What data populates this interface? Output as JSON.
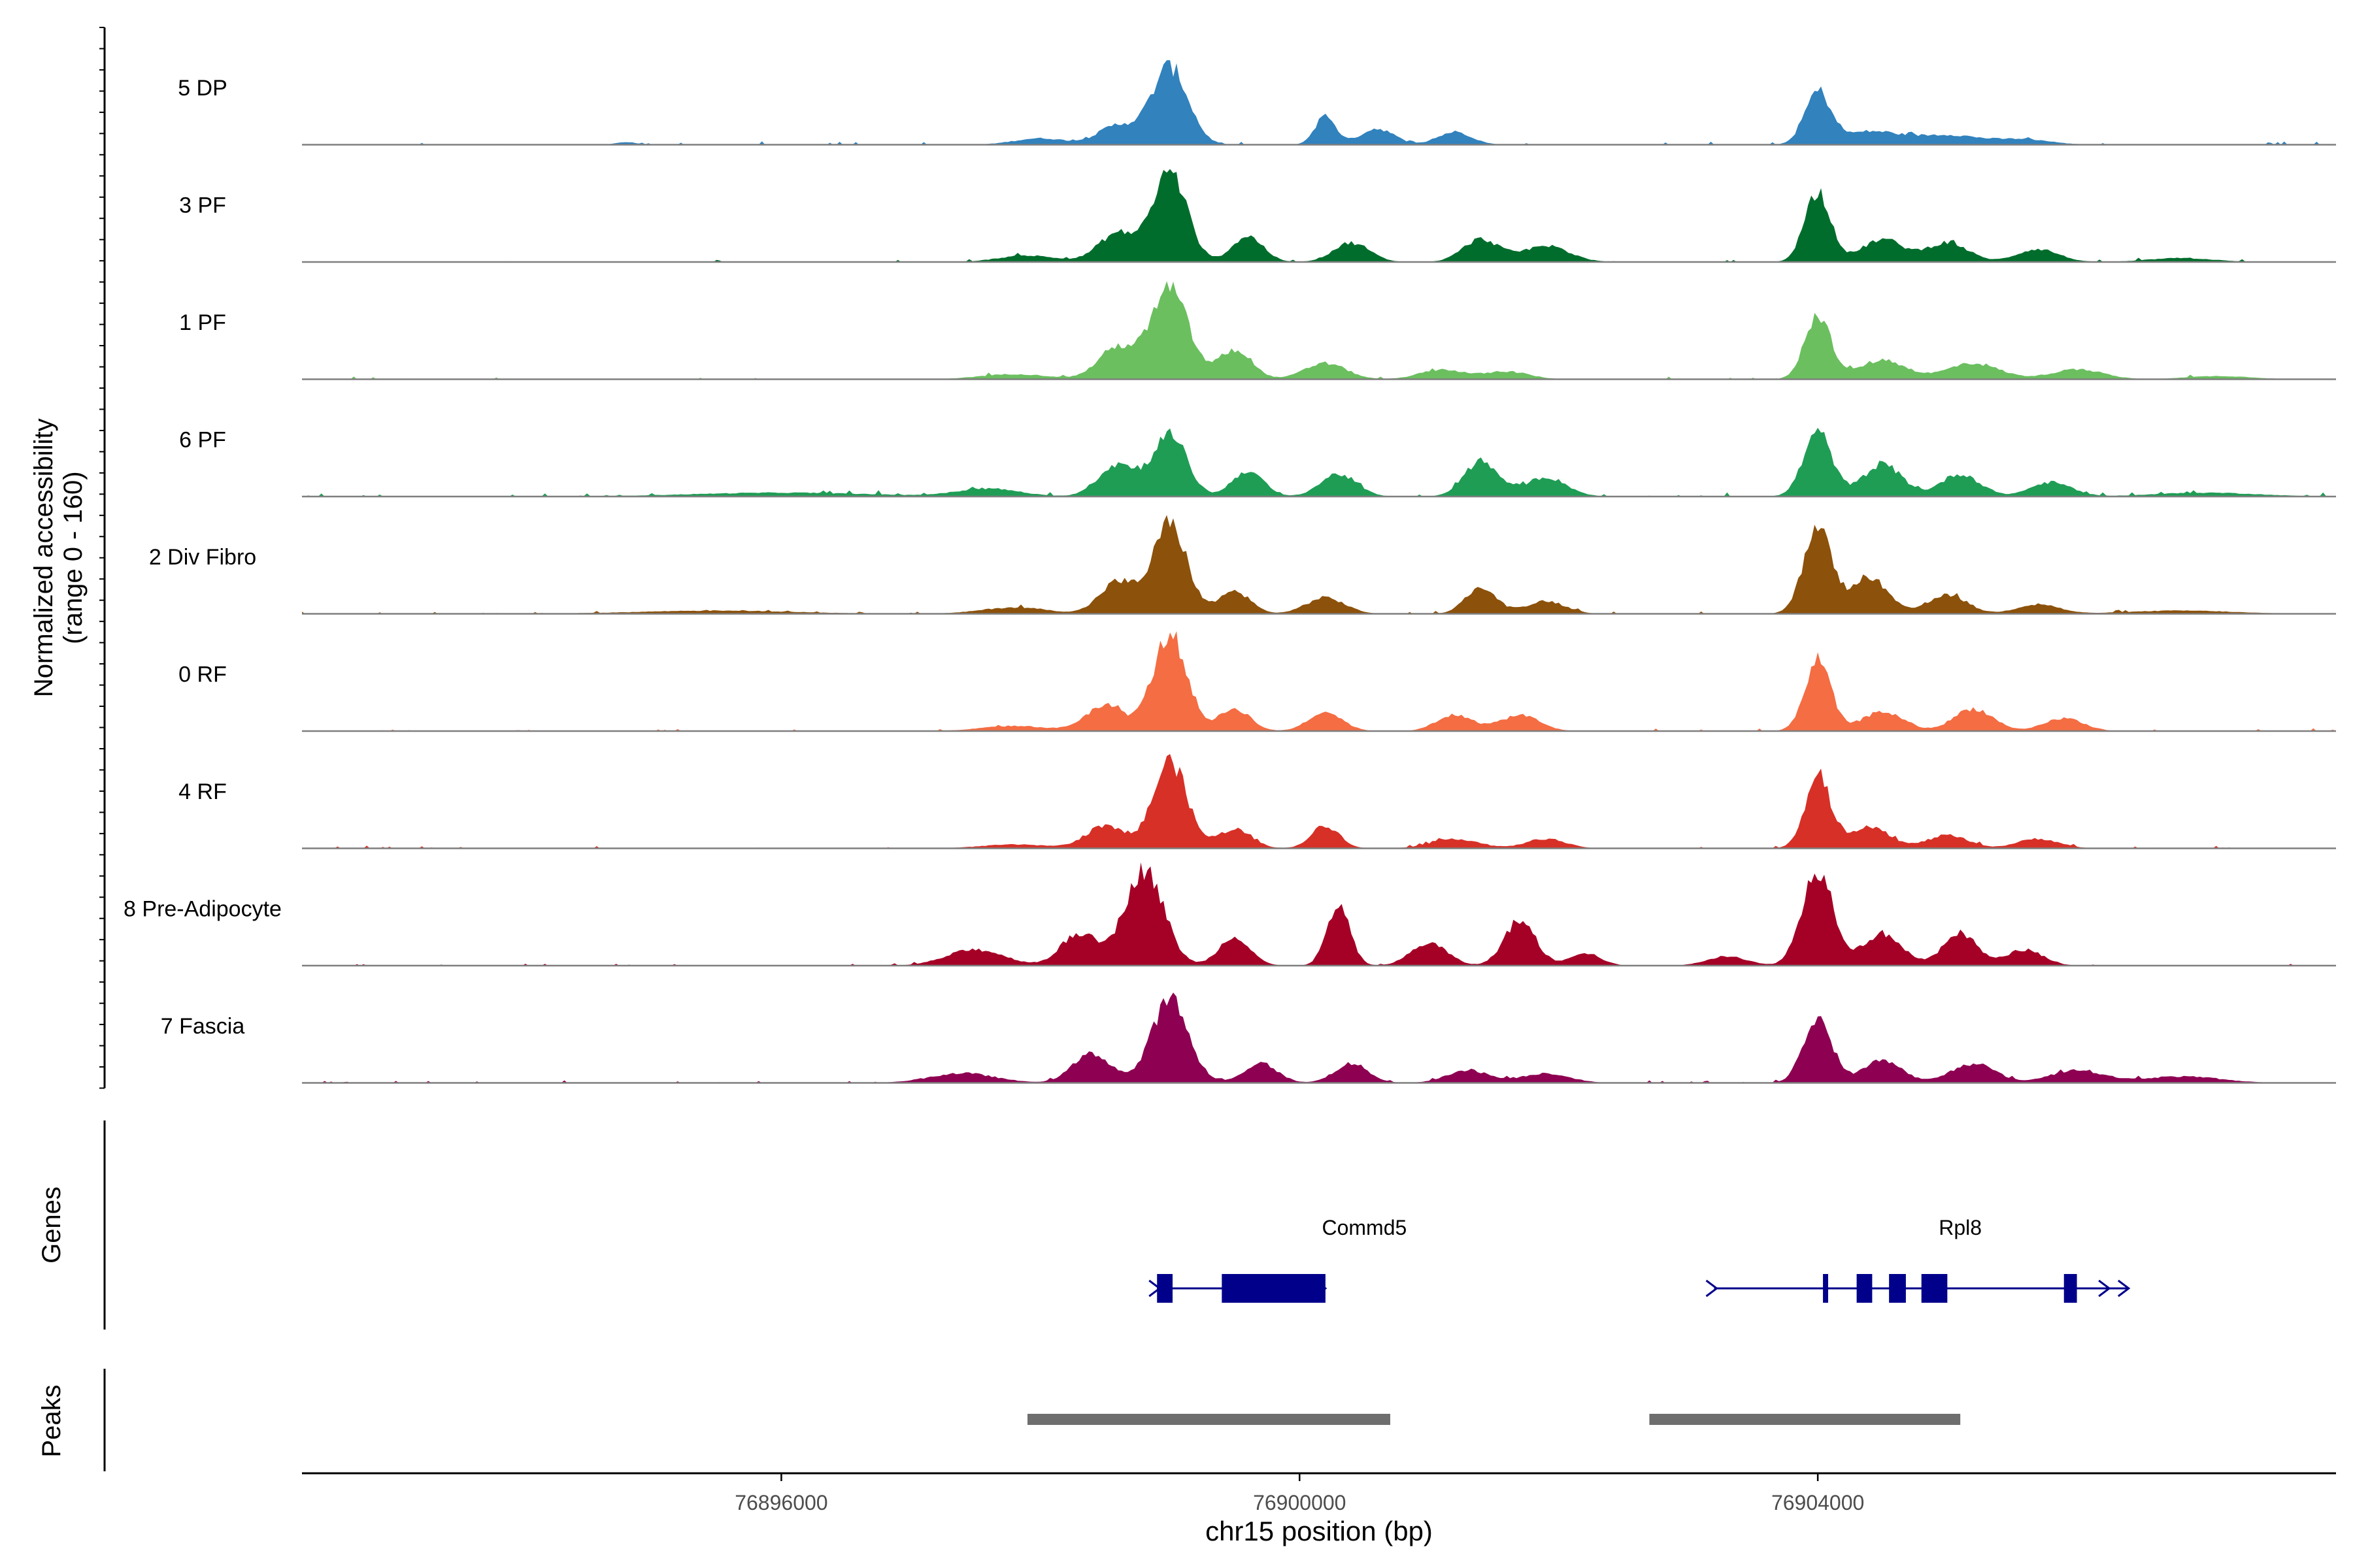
{
  "chart_data": {
    "type": "area",
    "title": "",
    "ylabel": [
      "Normalized accessibility",
      "(range 0 - 160)"
    ],
    "yrange": [
      0,
      160
    ],
    "xlabel": "chr15 position (bp)",
    "xlim": [
      76892300,
      76908000
    ],
    "xticks": [
      76896000,
      76900000,
      76904000
    ],
    "xtick_labels": [
      "76896000",
      "76900000",
      "76904000"
    ],
    "tracks": [
      {
        "name": "5 DP",
        "color": "#3182bd",
        "baseline": 5,
        "peaks": [
          [
            76899000,
            120,
            140
          ],
          [
            76898600,
            30,
            150
          ],
          [
            76900200,
            45,
            80
          ],
          [
            76900600,
            25,
            130
          ],
          [
            76901200,
            20,
            130
          ],
          [
            76898000,
            10,
            200
          ],
          [
            76904000,
            80,
            100
          ],
          [
            76904400,
            20,
            220
          ],
          [
            76905000,
            15,
            260
          ],
          [
            76905600,
            8,
            200
          ],
          [
            76894800,
            4,
            80
          ]
        ]
      },
      {
        "name": "3 PF",
        "color": "#006d2c",
        "baseline": 4,
        "peaks": [
          [
            76899000,
            140,
            130
          ],
          [
            76898600,
            45,
            150
          ],
          [
            76899600,
            40,
            120
          ],
          [
            76900400,
            30,
            140
          ],
          [
            76901400,
            35,
            140
          ],
          [
            76901900,
            25,
            180
          ],
          [
            76897900,
            10,
            220
          ],
          [
            76904000,
            110,
            100
          ],
          [
            76904500,
            35,
            160
          ],
          [
            76905000,
            30,
            160
          ],
          [
            76905700,
            20,
            160
          ],
          [
            76906800,
            6,
            250
          ]
        ]
      },
      {
        "name": "1 PF",
        "color": "#6bbf5f",
        "baseline": 4,
        "peaks": [
          [
            76899000,
            140,
            140
          ],
          [
            76898600,
            50,
            150
          ],
          [
            76899500,
            45,
            130
          ],
          [
            76900200,
            25,
            160
          ],
          [
            76901100,
            15,
            170
          ],
          [
            76901600,
            12,
            170
          ],
          [
            76897800,
            8,
            260
          ],
          [
            76904000,
            100,
            100
          ],
          [
            76904500,
            30,
            180
          ],
          [
            76905200,
            25,
            200
          ],
          [
            76906000,
            15,
            200
          ],
          [
            76907100,
            5,
            250
          ]
        ]
      },
      {
        "name": "6 PF",
        "color": "#1f9d55",
        "baseline": 6,
        "peaks": [
          [
            76899000,
            95,
            130
          ],
          [
            76898600,
            50,
            150
          ],
          [
            76899600,
            40,
            120
          ],
          [
            76900300,
            35,
            140
          ],
          [
            76901400,
            55,
            130
          ],
          [
            76901900,
            30,
            160
          ],
          [
            76897600,
            12,
            240
          ],
          [
            76904000,
            100,
            110
          ],
          [
            76904500,
            50,
            150
          ],
          [
            76905100,
            35,
            150
          ],
          [
            76905800,
            22,
            160
          ],
          [
            76896000,
            6,
            700
          ],
          [
            76907000,
            6,
            400
          ]
        ]
      },
      {
        "name": "2 Div Fibro",
        "color": "#8c510a",
        "baseline": 4,
        "peaks": [
          [
            76899000,
            140,
            130
          ],
          [
            76898600,
            50,
            140
          ],
          [
            76899500,
            35,
            120
          ],
          [
            76900200,
            25,
            150
          ],
          [
            76901400,
            40,
            120
          ],
          [
            76901900,
            20,
            150
          ],
          [
            76897800,
            10,
            250
          ],
          [
            76904000,
            130,
            110
          ],
          [
            76904400,
            55,
            140
          ],
          [
            76905000,
            30,
            150
          ],
          [
            76905700,
            15,
            160
          ],
          [
            76895500,
            5,
            600
          ],
          [
            76906800,
            5,
            400
          ]
        ]
      },
      {
        "name": "0 RF",
        "color": "#f46d43",
        "baseline": 4,
        "peaks": [
          [
            76899000,
            150,
            130
          ],
          [
            76898500,
            40,
            150
          ],
          [
            76899500,
            35,
            120
          ],
          [
            76900200,
            30,
            130
          ],
          [
            76901200,
            25,
            140
          ],
          [
            76901700,
            25,
            150
          ],
          [
            76897800,
            8,
            250
          ],
          [
            76904000,
            110,
            100
          ],
          [
            76904500,
            30,
            160
          ],
          [
            76905200,
            35,
            150
          ],
          [
            76905900,
            20,
            150
          ]
        ]
      },
      {
        "name": "4 RF",
        "color": "#d73027",
        "baseline": 4,
        "peaks": [
          [
            76899000,
            135,
            130
          ],
          [
            76898500,
            35,
            150
          ],
          [
            76899500,
            30,
            130
          ],
          [
            76900200,
            35,
            110
          ],
          [
            76901200,
            15,
            180
          ],
          [
            76901900,
            15,
            150
          ],
          [
            76897800,
            6,
            250
          ],
          [
            76904000,
            110,
            100
          ],
          [
            76904400,
            35,
            150
          ],
          [
            76905000,
            20,
            160
          ],
          [
            76905700,
            15,
            160
          ]
        ]
      },
      {
        "name": "8 Pre-Adipocyte",
        "color": "#a50026",
        "baseline": 3,
        "peaks": [
          [
            76898800,
            150,
            150
          ],
          [
            76898300,
            50,
            140
          ],
          [
            76899500,
            45,
            120
          ],
          [
            76900300,
            90,
            90
          ],
          [
            76901000,
            35,
            140
          ],
          [
            76901700,
            70,
            120
          ],
          [
            76902200,
            20,
            120
          ],
          [
            76897500,
            25,
            220
          ],
          [
            76904000,
            150,
            120
          ],
          [
            76904500,
            50,
            150
          ],
          [
            76905100,
            50,
            130
          ],
          [
            76905600,
            25,
            140
          ],
          [
            76903300,
            15,
            150
          ]
        ]
      },
      {
        "name": "7 Fascia",
        "color": "#8e0152",
        "baseline": 4,
        "peaks": [
          [
            76899000,
            130,
            140
          ],
          [
            76898400,
            45,
            150
          ],
          [
            76899700,
            30,
            130
          ],
          [
            76900400,
            30,
            130
          ],
          [
            76901300,
            20,
            160
          ],
          [
            76901900,
            15,
            180
          ],
          [
            76897400,
            15,
            250
          ],
          [
            76904000,
            100,
            110
          ],
          [
            76904500,
            35,
            150
          ],
          [
            76905200,
            30,
            170
          ],
          [
            76906000,
            20,
            200
          ],
          [
            76906800,
            10,
            300
          ]
        ]
      }
    ],
    "genes_label": "Genes",
    "genes": [
      {
        "name": "Commd5",
        "start": 76898900,
        "end": 76900200,
        "label_pos": 76900500,
        "exons": [
          [
            76898900,
            76899020
          ],
          [
            76899400,
            76900200
          ]
        ]
      },
      {
        "name": "Rpl8",
        "start": 76903200,
        "end": 76906400,
        "label_pos": 76905100,
        "exons": [
          [
            76904040,
            76904080
          ],
          [
            76904300,
            76904420
          ],
          [
            76904550,
            76904680
          ],
          [
            76904800,
            76905000
          ],
          [
            76905900,
            76906000
          ]
        ]
      }
    ],
    "peaks_label": "Peaks",
    "peak_regions": [
      [
        76897900,
        76900700
      ],
      [
        76902700,
        76905100
      ]
    ]
  }
}
